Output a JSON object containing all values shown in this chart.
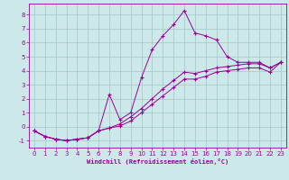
{
  "xlabel": "Windchill (Refroidissement éolien,°C)",
  "bg_color": "#cce8e8",
  "line_color": "#990099",
  "grid_color": "#aacccc",
  "xlim": [
    -0.5,
    23.5
  ],
  "ylim": [
    -1.5,
    8.8
  ],
  "yticks": [
    -1,
    0,
    1,
    2,
    3,
    4,
    5,
    6,
    7,
    8
  ],
  "xticks": [
    0,
    1,
    2,
    3,
    4,
    5,
    6,
    7,
    8,
    9,
    10,
    11,
    12,
    13,
    14,
    15,
    16,
    17,
    18,
    19,
    20,
    21,
    22,
    23
  ],
  "series": [
    {
      "x": [
        0,
        1,
        2,
        3,
        4,
        5,
        6,
        7,
        8,
        9,
        10,
        11,
        12,
        13,
        14,
        15,
        16,
        17,
        18,
        19,
        20,
        21,
        22,
        23
      ],
      "y": [
        -0.3,
        -0.7,
        -0.9,
        -1.0,
        -0.9,
        -0.8,
        -0.3,
        2.3,
        0.5,
        1.0,
        3.5,
        5.5,
        6.5,
        7.3,
        8.3,
        6.7,
        6.5,
        6.2,
        5.0,
        4.6,
        4.6,
        4.6,
        4.2,
        4.6
      ]
    },
    {
      "x": [
        0,
        1,
        2,
        3,
        4,
        5,
        6,
        7,
        8,
        9,
        10,
        11,
        12,
        13,
        14,
        15,
        16,
        17,
        18,
        19,
        20,
        21,
        22,
        23
      ],
      "y": [
        -0.3,
        -0.7,
        -0.9,
        -1.0,
        -0.9,
        -0.8,
        -0.3,
        -0.1,
        0.2,
        0.7,
        1.3,
        2.0,
        2.7,
        3.3,
        3.9,
        3.8,
        4.0,
        4.2,
        4.3,
        4.4,
        4.5,
        4.5,
        4.2,
        4.6
      ]
    },
    {
      "x": [
        0,
        1,
        2,
        3,
        4,
        5,
        6,
        7,
        8,
        9,
        10,
        11,
        12,
        13,
        14,
        15,
        16,
        17,
        18,
        19,
        20,
        21,
        22,
        23
      ],
      "y": [
        -0.3,
        -0.7,
        -0.9,
        -1.0,
        -0.9,
        -0.8,
        -0.3,
        -0.1,
        0.05,
        0.4,
        1.0,
        1.6,
        2.2,
        2.8,
        3.4,
        3.4,
        3.6,
        3.9,
        4.0,
        4.1,
        4.2,
        4.2,
        3.9,
        4.6
      ]
    }
  ]
}
